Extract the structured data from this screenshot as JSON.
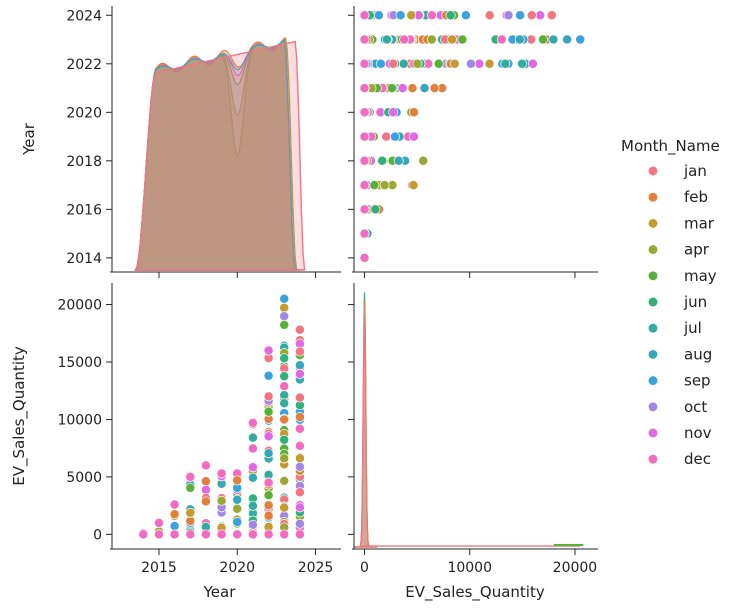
{
  "chart_data": {
    "type": "pairplot",
    "variables": [
      "Year",
      "EV_Sales_Quantity"
    ],
    "axes": {
      "Year": {
        "label": "Year",
        "y_ticks": [
          2014,
          2016,
          2018,
          2020,
          2022,
          2024
        ],
        "x_ticks": [
          2015,
          2020,
          2025
        ],
        "range": [
          2013.5,
          2024.3
        ],
        "xrange": [
          2012,
          2026.5
        ]
      },
      "EV_Sales_Quantity": {
        "label": "EV_Sales_Quantity",
        "y_ticks": [
          0,
          5000,
          10000,
          15000,
          20000
        ],
        "x_ticks": [
          0,
          10000,
          20000
        ],
        "range": [
          -1100,
          21700
        ],
        "xrange": [
          -1000,
          22000
        ]
      }
    },
    "legend": {
      "title": "Month_Name",
      "placement": "right",
      "entries": [
        "jan",
        "feb",
        "mar",
        "apr",
        "may",
        "jun",
        "jul",
        "aug",
        "sep",
        "oct",
        "nov",
        "dec"
      ]
    },
    "colors": [
      "#f37581",
      "#e0803a",
      "#c59a2f",
      "#9aa833",
      "#59b039",
      "#31b07a",
      "#33ab9e",
      "#36a6b9",
      "#3ba2e0",
      "#a288e6",
      "#e068e3",
      "#f36bc0"
    ],
    "year_max_sales": {
      "2014": 100,
      "2015": 1000,
      "2016": 2600,
      "2017": 5000,
      "2018": 6000,
      "2019": 5300,
      "2020": 5300,
      "2021": 9700,
      "2022": 16000,
      "2023": 20500,
      "2024": 17800
    },
    "highlights": [
      {
        "year": 2024,
        "sales": 17800,
        "month": "jan"
      },
      {
        "year": 2024,
        "sales": 15900,
        "month": "jan"
      },
      {
        "year": 2024,
        "sales": 11900,
        "month": "jan"
      },
      {
        "year": 2022,
        "sales": 16000,
        "month": "nov"
      },
      {
        "year": 2023,
        "sales": 20500,
        "month": "sep"
      },
      {
        "year": 2020,
        "sales": 4700,
        "month": "feb"
      }
    ]
  }
}
